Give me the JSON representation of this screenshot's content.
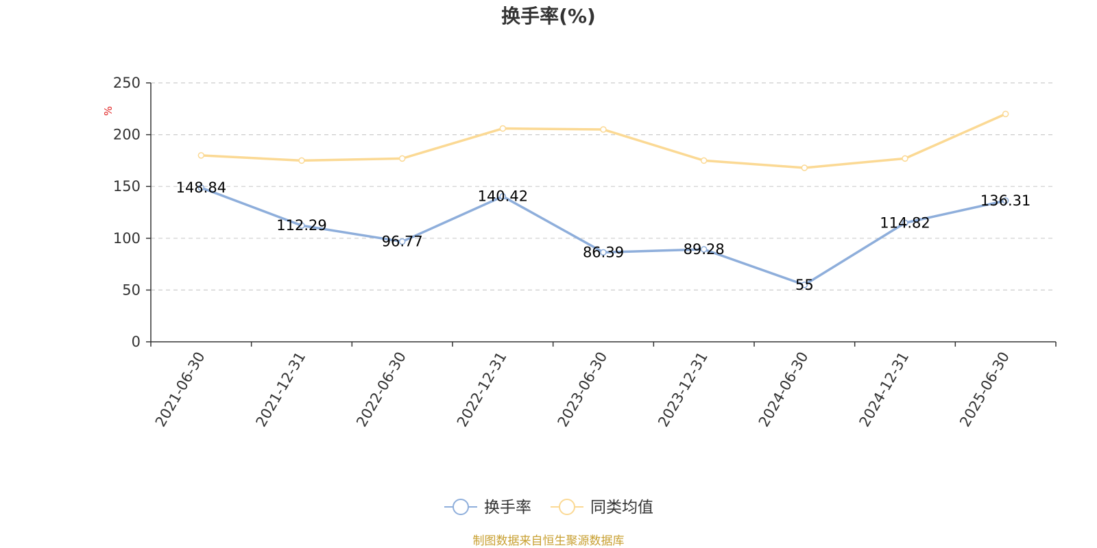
{
  "chart_data": {
    "type": "line",
    "title": "换手率(%)",
    "ylabel": "%",
    "xlabel": "",
    "ylim": [
      0,
      250
    ],
    "yticks": [
      0,
      50,
      100,
      150,
      200,
      250
    ],
    "grid": true,
    "legend_position": "bottom",
    "categories": [
      "2021-06-30",
      "2021-12-31",
      "2022-06-30",
      "2022-12-31",
      "2023-06-30",
      "2023-12-31",
      "2024-06-30",
      "2024-12-31",
      "2025-06-30"
    ],
    "series": [
      {
        "name": "换手率",
        "color": "#8eaedb",
        "values": [
          148.84,
          112.29,
          96.77,
          140.42,
          86.39,
          89.28,
          55,
          114.82,
          136.31
        ],
        "labels": [
          "148.84",
          "112.29",
          "96.77",
          "140.42",
          "86.39",
          "89.28",
          "55",
          "114.82",
          "136.31"
        ]
      },
      {
        "name": "同类均值",
        "color": "#fbd994",
        "values": [
          180,
          175,
          177,
          206,
          205,
          175,
          168,
          177,
          220
        ]
      }
    ],
    "source": "制图数据来自恒生聚源数据库",
    "source_color": "#c8a032",
    "unit_color": "#e02020",
    "axis_color": "#333333",
    "grid_color": "#cccccc"
  }
}
